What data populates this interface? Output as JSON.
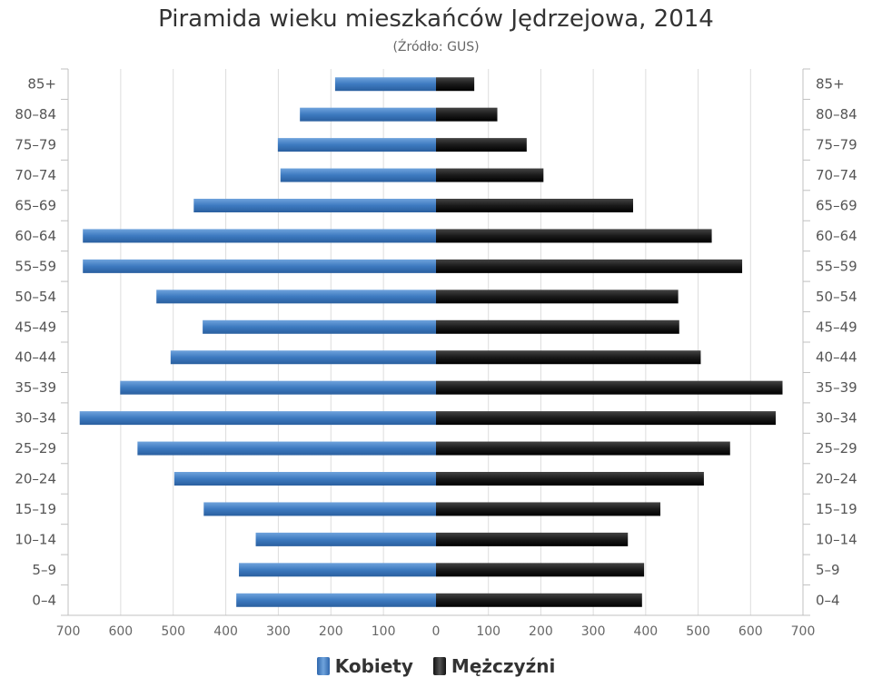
{
  "chart_data": {
    "type": "bar",
    "orientation": "horizontal-population-pyramid",
    "title": "Piramida wieku mieszkańców Jędrzejowa, 2014",
    "subtitle": "(Źródło: GUS)",
    "categories": [
      "85+",
      "80–84",
      "75–79",
      "70–74",
      "65–69",
      "60–64",
      "55–59",
      "50–54",
      "45–49",
      "40–44",
      "35–39",
      "30–34",
      "25–29",
      "20–24",
      "15–19",
      "10–14",
      "5–9",
      "0–4"
    ],
    "series": [
      {
        "name": "Kobiety",
        "color": "#3d7ac0",
        "values": [
          192,
          259,
          301,
          296,
          461,
          672,
          672,
          532,
          444,
          505,
          601,
          678,
          568,
          498,
          442,
          343,
          375,
          380
        ]
      },
      {
        "name": "Mężczyźni",
        "color": "#222222",
        "values": [
          73,
          117,
          173,
          205,
          376,
          526,
          584,
          462,
          464,
          505,
          661,
          648,
          561,
          511,
          428,
          366,
          397,
          393
        ]
      }
    ],
    "xticks": [
      "700",
      "600",
      "500",
      "400",
      "300",
      "200",
      "100",
      "0",
      "100",
      "200",
      "300",
      "400",
      "500",
      "600",
      "700"
    ],
    "xlim": [
      -700,
      700
    ],
    "grid": true,
    "legend_position": "bottom"
  }
}
